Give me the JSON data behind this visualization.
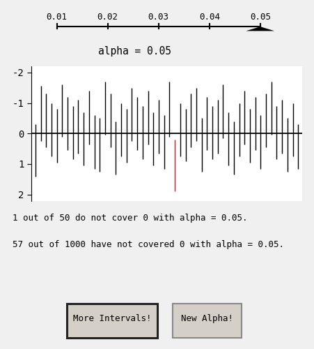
{
  "alpha_label": "alpha = 0.05",
  "slider_min": 0.01,
  "slider_max": 0.05,
  "slider_value": 0.05,
  "slider_ticks": [
    0.01,
    0.02,
    0.03,
    0.04,
    0.05
  ],
  "n_intervals": 50,
  "red_interval_index": 26,
  "ylim": [
    -2.2,
    2.2
  ],
  "yticks": [
    -2,
    -1,
    0,
    1,
    2
  ],
  "text_line1": "1 out of 50 do not cover 0 with alpha = 0.05.",
  "text_line2": "57 out of 1000 have not covered 0 with alpha = 0.05.",
  "button1_label": "More Intervals!",
  "button2_label": "New Alpha!",
  "bg_color": "#f0f0f0",
  "plot_bg": "#ffffff",
  "intervals": [
    [
      -0.3,
      1.4
    ],
    [
      -1.55,
      0.25
    ],
    [
      -1.3,
      0.45
    ],
    [
      -1.0,
      0.75
    ],
    [
      -0.8,
      0.95
    ],
    [
      -1.6,
      0.1
    ],
    [
      -1.2,
      0.55
    ],
    [
      -0.9,
      0.85
    ],
    [
      -1.1,
      0.65
    ],
    [
      -0.7,
      1.05
    ],
    [
      -1.4,
      0.35
    ],
    [
      -0.6,
      1.15
    ],
    [
      -0.5,
      1.25
    ],
    [
      -1.7,
      0.05
    ],
    [
      -1.3,
      0.45
    ],
    [
      -0.4,
      1.35
    ],
    [
      -1.0,
      0.75
    ],
    [
      -0.8,
      0.95
    ],
    [
      -1.5,
      0.25
    ],
    [
      -1.2,
      0.55
    ],
    [
      -0.9,
      0.85
    ],
    [
      -1.4,
      0.35
    ],
    [
      -0.7,
      1.05
    ],
    [
      -1.1,
      0.65
    ],
    [
      -0.6,
      1.15
    ],
    [
      -1.7,
      0.1
    ],
    [
      0.2,
      1.9
    ],
    [
      -1.0,
      0.75
    ],
    [
      -0.8,
      0.9
    ],
    [
      -1.3,
      0.45
    ],
    [
      -1.5,
      0.25
    ],
    [
      -0.5,
      1.25
    ],
    [
      -1.2,
      0.55
    ],
    [
      -0.9,
      0.85
    ],
    [
      -1.1,
      0.65
    ],
    [
      -1.6,
      0.15
    ],
    [
      -0.7,
      1.05
    ],
    [
      -0.4,
      1.35
    ],
    [
      -1.0,
      0.75
    ],
    [
      -1.4,
      0.35
    ],
    [
      -0.8,
      0.95
    ],
    [
      -1.2,
      0.55
    ],
    [
      -0.6,
      1.15
    ],
    [
      -1.3,
      0.45
    ],
    [
      -1.7,
      0.05
    ],
    [
      -0.9,
      0.85
    ],
    [
      -1.1,
      0.65
    ],
    [
      -0.5,
      1.25
    ],
    [
      -1.0,
      0.75
    ],
    [
      -0.3,
      1.15
    ]
  ]
}
